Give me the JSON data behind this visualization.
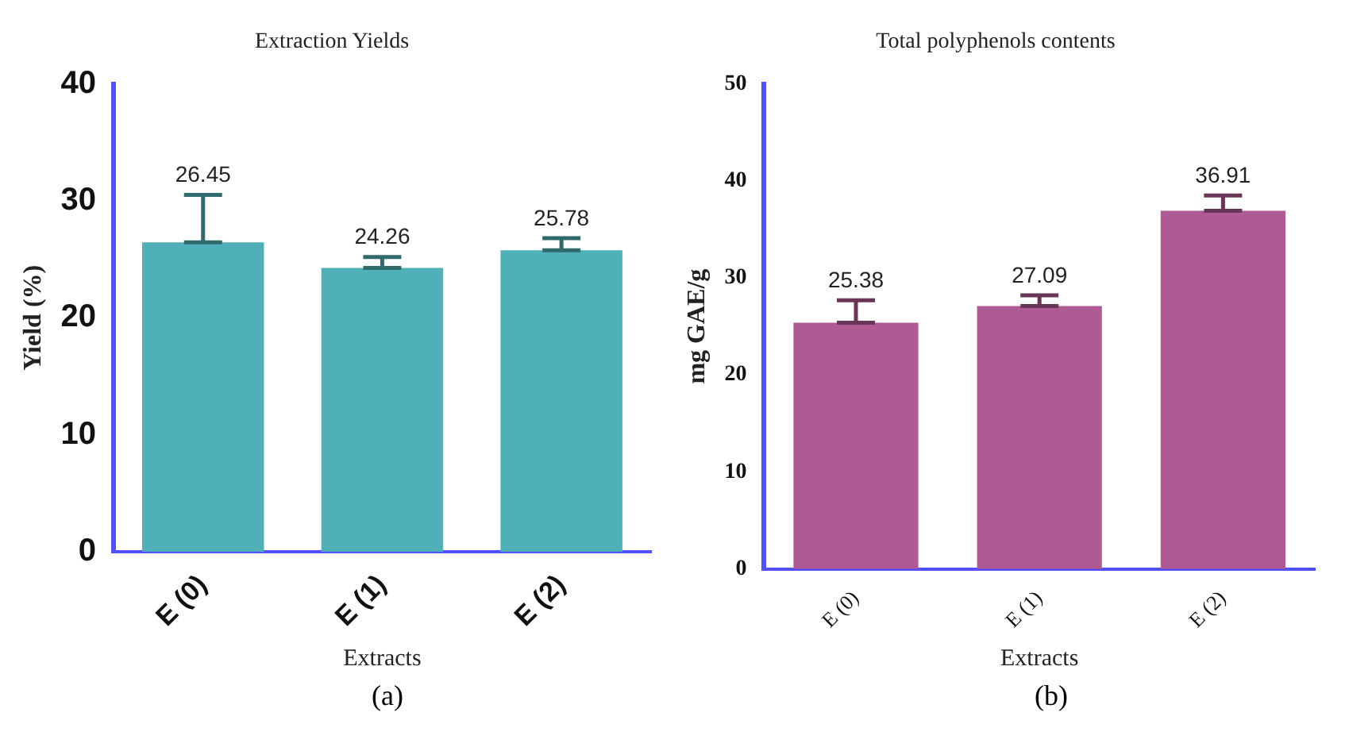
{
  "chart_data": [
    {
      "type": "bar",
      "title": "Extraction Yields",
      "xlabel": "Extracts",
      "ylabel": "Yield (%)",
      "categories": [
        "E (0)",
        "E (1)",
        "E (2)"
      ],
      "values": [
        26.45,
        24.26,
        25.78
      ],
      "color": "#4fb0b8",
      "errors": [
        [
          26.45,
          30.5
        ],
        [
          24.26,
          25.2
        ],
        [
          25.78,
          26.8
        ]
      ],
      "data_labels": true,
      "ylim": [
        0,
        40
      ],
      "yticks": [
        0,
        10,
        20,
        30,
        40
      ],
      "annotations": [
        "(a)"
      ]
    },
    {
      "type": "bar",
      "title": "Total polyphenols contents",
      "xlabel": "Extracts",
      "ylabel": "mg GAE/g",
      "categories": [
        "E (0)",
        "E (1)",
        "E (2)"
      ],
      "values": [
        25.38,
        27.09,
        36.91
      ],
      "color": "#b05a93",
      "errors": [
        [
          25.38,
          27.7
        ],
        [
          27.09,
          28.2
        ],
        [
          36.91,
          38.5
        ]
      ],
      "data_labels": true,
      "ylim": [
        0,
        50
      ],
      "yticks": [
        0,
        10,
        20,
        30,
        40,
        50
      ],
      "annotations": [
        "(b)"
      ]
    }
  ]
}
